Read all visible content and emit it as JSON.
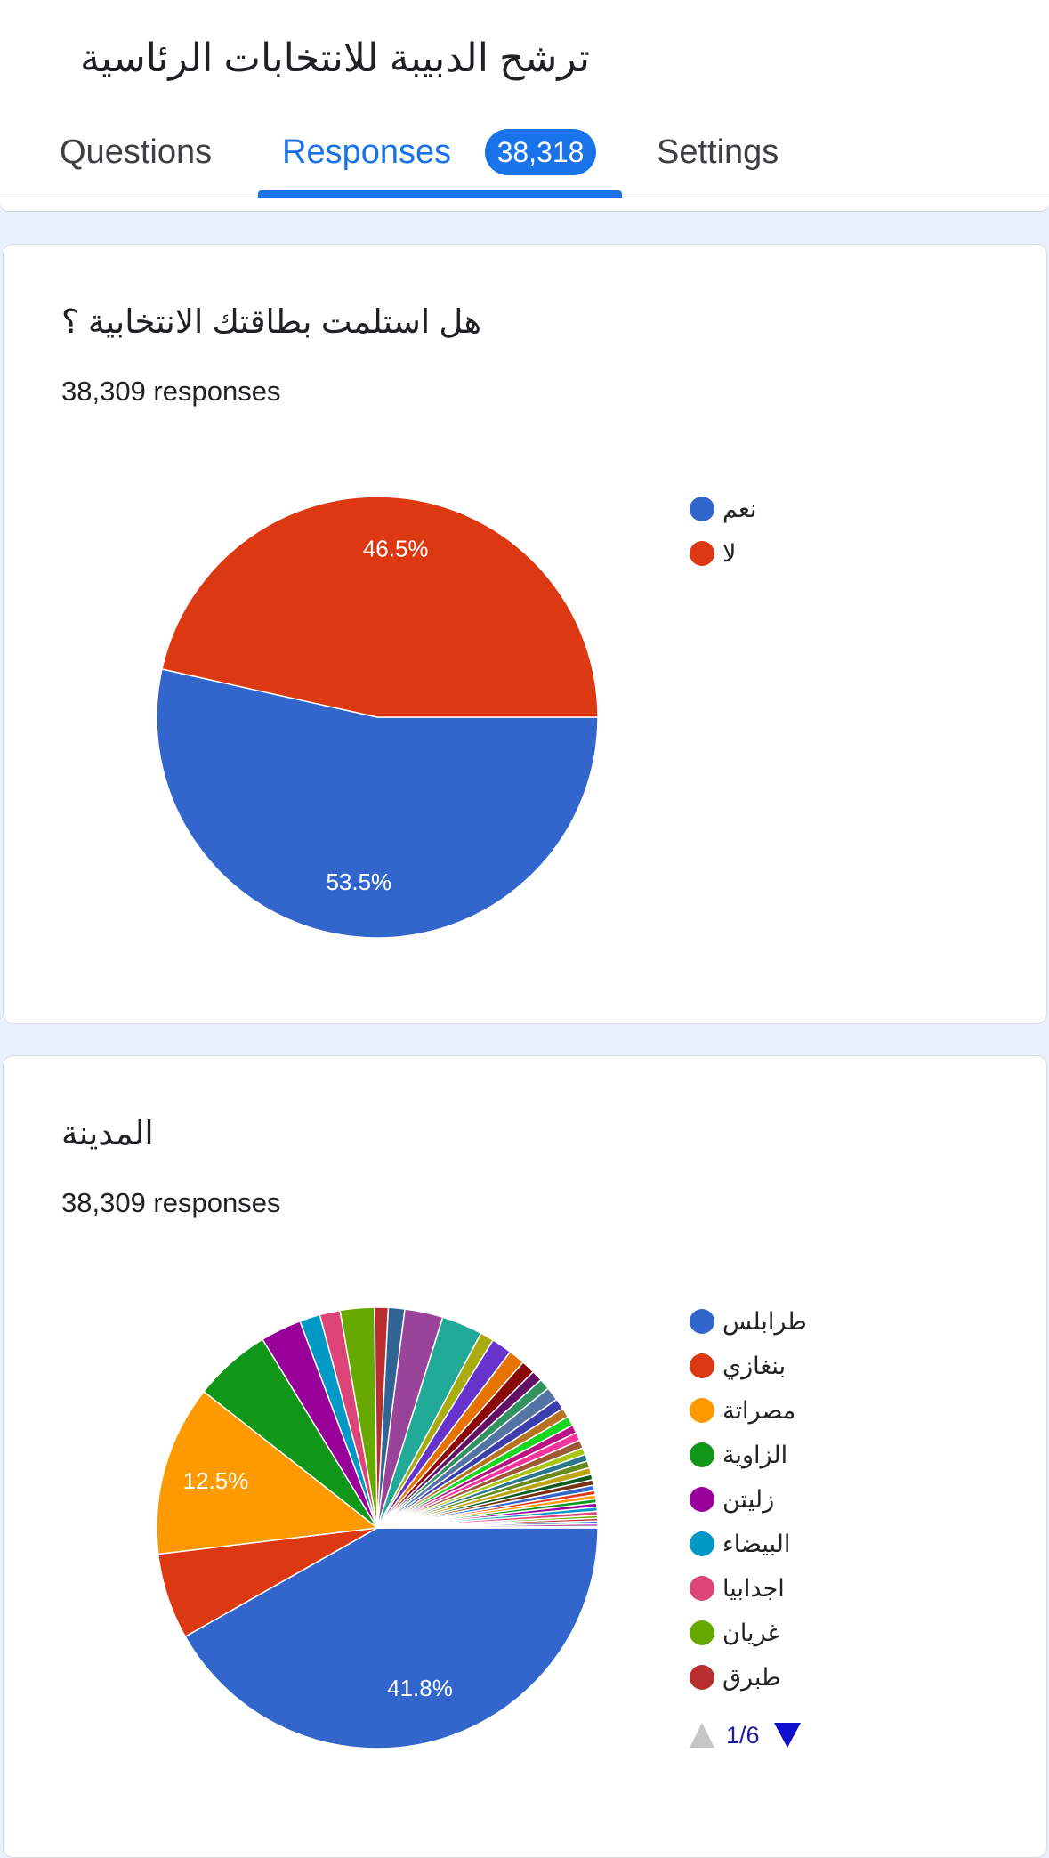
{
  "header": {
    "title": "ترشح الدبيبة للانتخابات الرئاسية",
    "tabs": [
      "Questions",
      "Responses",
      "Settings"
    ],
    "response_count": "38,318"
  },
  "chart_data": [
    {
      "type": "pie",
      "title": "هل استلمت بطاقتك الانتخابية ؟",
      "subtitle": "38,309 responses",
      "categories": [
        "نعم",
        "لا"
      ],
      "values": [
        53.5,
        46.5
      ],
      "value_labels": [
        "53.5%",
        "46.5%"
      ],
      "colors": [
        "#3366cc",
        "#dc3912"
      ]
    },
    {
      "type": "pie",
      "title": "المدينة",
      "subtitle": "38,309 responses",
      "categories": [
        "طرابلس",
        "بنغازي",
        "مصراتة",
        "الزاوية",
        "زليتن",
        "البيضاء",
        "اجدابيا",
        "غريان",
        "طبرق",
        null,
        null,
        null,
        null,
        null,
        null,
        null,
        null,
        null,
        null,
        null,
        null,
        null,
        null,
        null,
        null,
        null,
        null,
        null,
        null,
        null,
        null,
        null,
        null,
        null,
        null,
        null,
        null,
        null,
        null,
        null,
        null,
        null,
        null
      ],
      "values": [
        41.8,
        6.3,
        12.5,
        5.7,
        3.0,
        1.5,
        1.5,
        2.5,
        1.0,
        1.2,
        2.8,
        3.0,
        1.0,
        1.5,
        1.2,
        1.0,
        0.8,
        0.8,
        1.0,
        0.8,
        0.7,
        0.7,
        0.6,
        0.6,
        0.6,
        0.5,
        0.5,
        0.5,
        0.5,
        0.4,
        0.4,
        0.4,
        0.3,
        0.3,
        0.3,
        0.3,
        0.3,
        0.3,
        0.2,
        0.2,
        0.2,
        0.2,
        0.1
      ],
      "value_labels": [
        "41.8%",
        null,
        "12.5%",
        null,
        null,
        null,
        null,
        null,
        null,
        null,
        null,
        null,
        null,
        null,
        null,
        null,
        null,
        null,
        null,
        null,
        null,
        null,
        null,
        null,
        null,
        null,
        null,
        null,
        null,
        null,
        null,
        null,
        null,
        null,
        null,
        null,
        null,
        null,
        null,
        null,
        null,
        null,
        null
      ],
      "colors": [
        "#3366cc",
        "#dc3912",
        "#ff9900",
        "#109618",
        "#990099",
        "#0099c6",
        "#dd4477",
        "#66aa00",
        "#b82e2e",
        "#316395",
        "#994499",
        "#22aa99",
        "#aaaa11",
        "#6633cc",
        "#e67300",
        "#8b0707",
        "#651067",
        "#329262",
        "#5574a6",
        "#3b3eac",
        "#b77322",
        "#16d620",
        "#b91383",
        "#f4359e",
        "#9c5935",
        "#a9c413",
        "#2a778d",
        "#668d1c",
        "#bea413",
        "#0c5922",
        "#743411"
      ],
      "legend_page": "1/6"
    }
  ]
}
